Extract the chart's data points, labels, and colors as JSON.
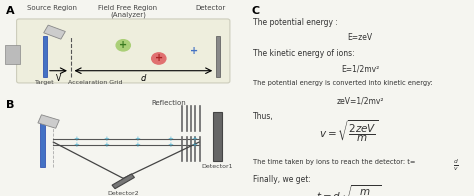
{
  "bg_color": "#f5f5f0",
  "blue_color": "#4472c4",
  "text_color": "#333333",
  "panel_A_label": "A",
  "panel_B_label": "B",
  "panel_C_label": "C",
  "source_region_label": "Source Region",
  "field_free_label": "Field Free Region\n(Analyzer)",
  "detector_label_A": "Detector",
  "target_label": "Target",
  "accel_grid_label": "Accelaration Grid",
  "reflection_label": "Reflection",
  "detector1_label": "Detector1",
  "detector2_label": "Detector2",
  "v_label": "V",
  "d_label": "d",
  "eq1": "The potential energy :",
  "eq1b": "E=zeV",
  "eq2": "The kinetic energy of ions:",
  "eq2b": "E=1/2mv²",
  "eq3": "The potential energy is converted into kinetic energy:",
  "eq3b": "zeV=1/2mv²",
  "eq4": "Thus,",
  "eq5": "The time taken by ions to reach the detector: t=",
  "eq6": "Finally, we get:"
}
